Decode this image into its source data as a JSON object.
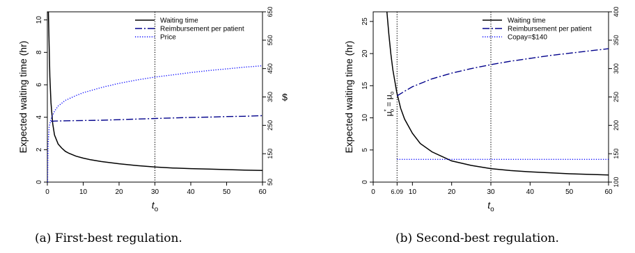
{
  "captions": {
    "a": "(a) First-best regulation.",
    "b": "(b) Second-best regulation."
  },
  "chart_data": [
    {
      "type": "line",
      "panel": "a",
      "xlabel": "t",
      "xlabel_sub": "o",
      "ylabel": "Expected waiting time (hr)",
      "ylabel_right": "$",
      "xlim": [
        0,
        60
      ],
      "ylim": [
        0,
        10.5
      ],
      "ylim_right": [
        50,
        650
      ],
      "xticks": [
        0,
        10,
        20,
        30,
        40,
        50,
        60
      ],
      "yticks": [
        0,
        2,
        4,
        6,
        8,
        10
      ],
      "yticks_right": [
        50,
        150,
        250,
        350,
        450,
        550,
        650
      ],
      "vline": 30,
      "legend_position": "top-right",
      "series": [
        {
          "name": "Waiting time",
          "axis": "left",
          "style": "solid",
          "color": "#000000",
          "x": [
            0.1,
            0.3,
            0.5,
            0.7,
            1,
            1.5,
            2,
            3,
            4,
            5,
            6,
            8,
            10,
            12,
            15,
            20,
            25,
            30,
            35,
            40,
            45,
            50,
            55,
            60
          ],
          "y": [
            10.5,
            10.5,
            8.4,
            6.5,
            4.9,
            3.6,
            2.9,
            2.35,
            2.1,
            1.9,
            1.78,
            1.6,
            1.48,
            1.38,
            1.27,
            1.13,
            1.02,
            0.93,
            0.87,
            0.83,
            0.8,
            0.77,
            0.74,
            0.72
          ]
        },
        {
          "name": "Reimbursement per patient",
          "axis": "right",
          "style": "dashdot",
          "color": "#00008b",
          "x": [
            1,
            2,
            5,
            10,
            15,
            20,
            25,
            30,
            35,
            40,
            45,
            50,
            55,
            60
          ],
          "y": [
            264,
            265,
            266,
            267,
            268,
            270,
            272,
            274,
            276,
            278,
            279,
            281,
            282,
            284
          ]
        },
        {
          "name": "Price",
          "axis": "right",
          "style": "dotted",
          "color": "#0000ff",
          "x": [
            0.05,
            0.2,
            0.5,
            1,
            2,
            3,
            5,
            8,
            10,
            15,
            20,
            25,
            30,
            35,
            40,
            45,
            50,
            55,
            60
          ],
          "y": [
            50,
            180,
            245,
            272,
            300,
            318,
            338,
            355,
            365,
            383,
            398,
            410,
            420,
            428,
            436,
            443,
            449,
            455,
            460
          ]
        }
      ]
    },
    {
      "type": "line",
      "panel": "b",
      "xlabel": "t",
      "xlabel_sub": "o",
      "ylabel": "Expected waiting time (hr)",
      "xlim": [
        0,
        60
      ],
      "ylim": [
        0,
        26.5
      ],
      "ylim_right": [
        100,
        400
      ],
      "xticks": [
        0,
        10,
        20,
        30,
        40,
        50,
        60
      ],
      "extra_xtick": {
        "value": 6.09,
        "label": "6.09"
      },
      "yticks": [
        0,
        5,
        10,
        15,
        20,
        25
      ],
      "yticks_right": [
        100,
        150,
        200,
        250,
        300,
        350,
        400
      ],
      "vline": 30,
      "vline_left": 6.09,
      "vline_left_label": "μ*o = μo",
      "legend_position": "top-right",
      "series": [
        {
          "name": "Waiting time",
          "axis": "left",
          "style": "solid",
          "color": "#000000",
          "x": [
            3.5,
            4,
            4.5,
            5,
            6,
            7,
            8,
            10,
            12,
            15,
            20,
            25,
            30,
            35,
            40,
            50,
            60
          ],
          "y": [
            26.5,
            23,
            20,
            17.5,
            14,
            11.5,
            9.8,
            7.6,
            6,
            4.7,
            3.3,
            2.6,
            2.1,
            1.8,
            1.6,
            1.3,
            1.1
          ]
        },
        {
          "name": "Reimbursement per patient",
          "axis": "right",
          "style": "dashdot",
          "color": "#00008b",
          "x": [
            6.09,
            8,
            10,
            15,
            20,
            25,
            30,
            35,
            40,
            45,
            50,
            55,
            60
          ],
          "y": [
            252,
            260,
            268,
            282,
            292,
            300,
            307,
            313,
            318,
            323,
            327,
            331,
            335
          ]
        },
        {
          "name": "Copay=$140",
          "axis": "right",
          "style": "dotted",
          "color": "#0000ff",
          "x": [
            6.09,
            60
          ],
          "y": [
            140,
            140
          ]
        }
      ]
    }
  ]
}
